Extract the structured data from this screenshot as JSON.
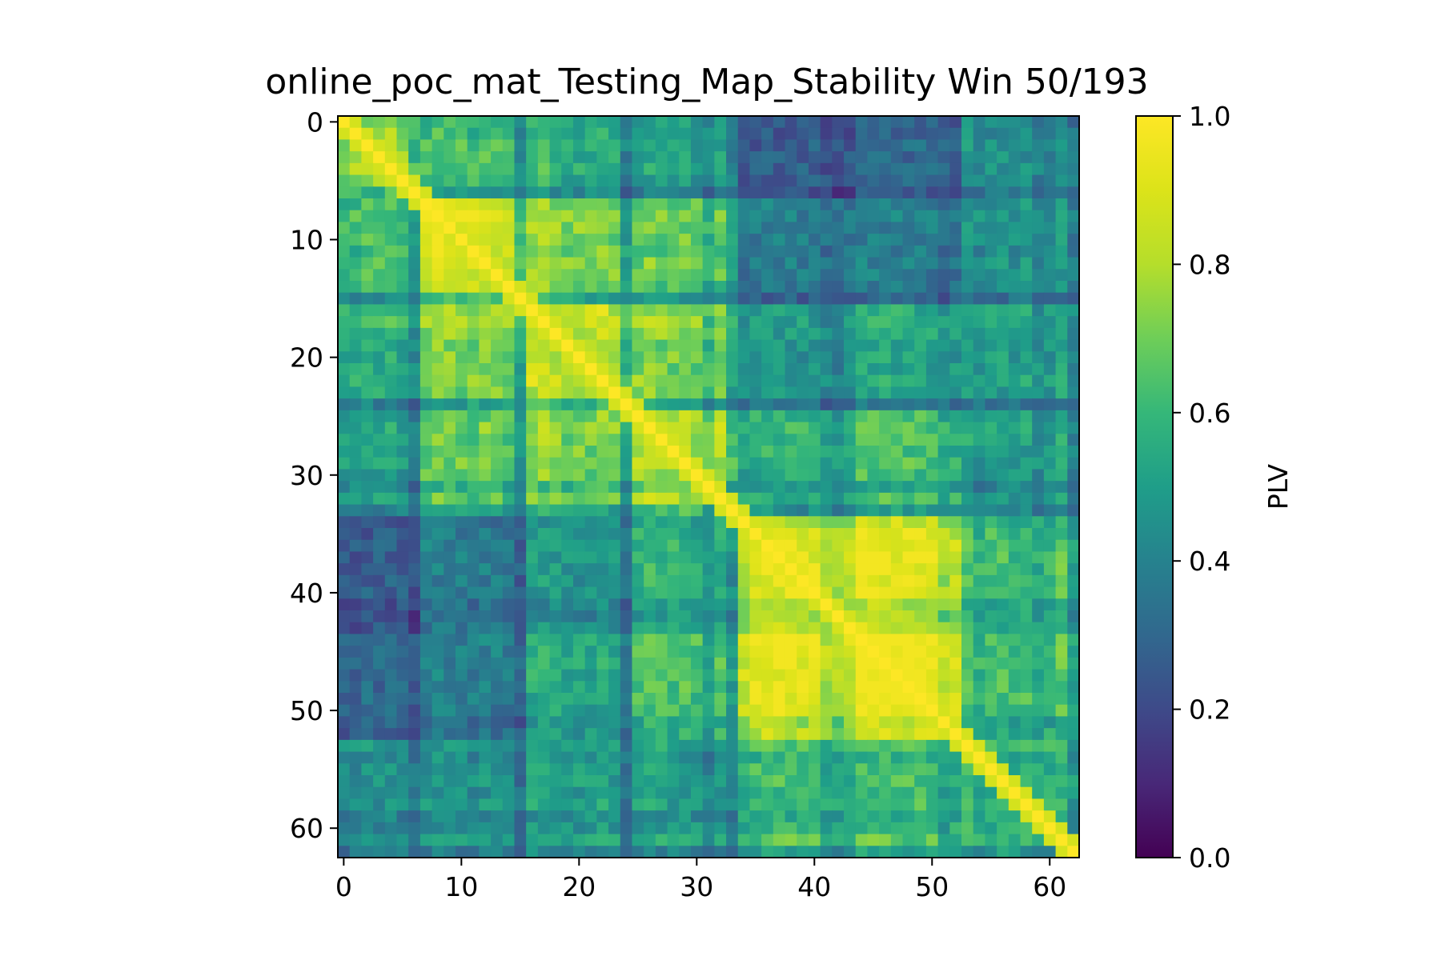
{
  "chart_data": {
    "type": "heatmap",
    "title": "online_poc_mat_Testing_Map_Stability Win 50/193",
    "xlabel": "",
    "ylabel": "",
    "n": 63,
    "x_ticks": [
      0,
      10,
      20,
      30,
      40,
      50,
      60
    ],
    "y_ticks": [
      0,
      10,
      20,
      30,
      40,
      50,
      60
    ],
    "colormap": "viridis",
    "colorbar": {
      "label": "PLV",
      "range": [
        0.0,
        1.0
      ],
      "ticks": [
        "0.0",
        "0.2",
        "0.4",
        "0.6",
        "0.8",
        "1.0"
      ]
    },
    "diagonal_value": 1.0,
    "blocks": [
      {
        "range": [
          0,
          6
        ],
        "within": 0.78
      },
      {
        "range": [
          7,
          15
        ],
        "within": 0.85
      },
      {
        "range": [
          16,
          24
        ],
        "within": 0.8
      },
      {
        "range": [
          25,
          33
        ],
        "within": 0.78
      },
      {
        "range": [
          34,
          43
        ],
        "within": 0.85
      },
      {
        "range": [
          44,
          52
        ],
        "within": 0.9
      },
      {
        "range": [
          53,
          62
        ],
        "within": 0.6
      }
    ],
    "between_blocks": [
      [
        0.78,
        0.6,
        0.55,
        0.5,
        0.25,
        0.3,
        0.45
      ],
      [
        0.6,
        0.85,
        0.7,
        0.65,
        0.35,
        0.35,
        0.45
      ],
      [
        0.55,
        0.7,
        0.8,
        0.7,
        0.45,
        0.5,
        0.5
      ],
      [
        0.5,
        0.65,
        0.7,
        0.78,
        0.55,
        0.6,
        0.5
      ],
      [
        0.25,
        0.35,
        0.45,
        0.55,
        0.85,
        0.85,
        0.6
      ],
      [
        0.3,
        0.35,
        0.5,
        0.6,
        0.85,
        0.9,
        0.6
      ],
      [
        0.45,
        0.45,
        0.5,
        0.5,
        0.6,
        0.6,
        0.6
      ]
    ],
    "channel_modulation": [
      0.9,
      0.95,
      1.05,
      1.0,
      1.1,
      0.95,
      0.6,
      1.05,
      1.15,
      1.1,
      1.05,
      1.0,
      1.1,
      1.05,
      0.95,
      0.55,
      1.1,
      1.15,
      1.05,
      0.95,
      1.0,
      1.0,
      1.1,
      0.95,
      0.5,
      1.0,
      1.1,
      1.05,
      1.0,
      1.05,
      0.95,
      0.7,
      1.0,
      0.6,
      0.9,
      1.05,
      1.15,
      1.1,
      1.1,
      1.05,
      1.05,
      0.8,
      0.75,
      0.9,
      1.15,
      1.15,
      1.15,
      1.1,
      1.1,
      1.1,
      1.05,
      0.8,
      0.9,
      1.1,
      0.85,
      1.0,
      1.0,
      0.95,
      1.0,
      0.8,
      0.9,
      1.1,
      0.65
    ]
  }
}
